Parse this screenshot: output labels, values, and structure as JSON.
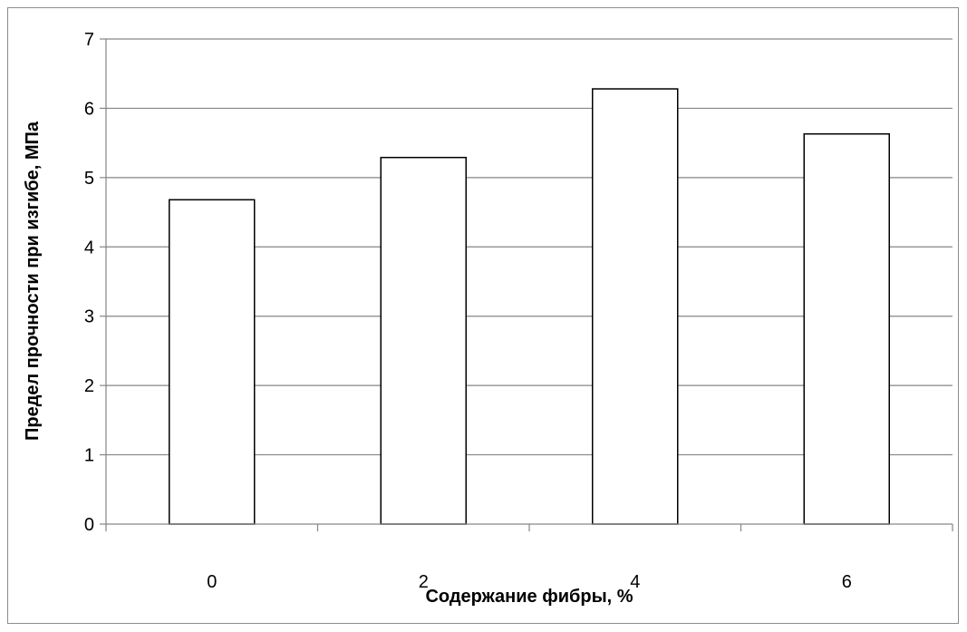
{
  "chart_data": {
    "type": "bar",
    "title": "",
    "xlabel": "Содержание фибры, %",
    "ylabel": "Предел прочности при изгибе, МПа",
    "categories": [
      "0",
      "2",
      "4",
      "6"
    ],
    "values": [
      4.68,
      5.29,
      6.28,
      5.63
    ],
    "ylim": [
      0,
      7
    ],
    "yticks": [
      "0",
      "1",
      "2",
      "3",
      "4",
      "5",
      "6",
      "7"
    ],
    "grid": true,
    "legend": "none",
    "colors": {
      "bar_fill": "#ffffff",
      "bar_stroke": "#000000",
      "grid": "#868686",
      "axis": "#868686"
    }
  }
}
